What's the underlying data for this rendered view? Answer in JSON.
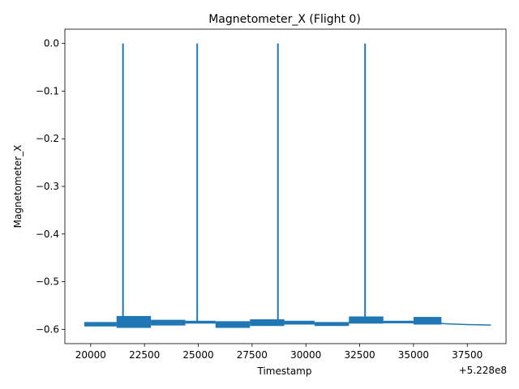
{
  "chart_data": {
    "type": "line",
    "title": "Magnetometer_X (Flight 0)",
    "xlabel": "Timestamp",
    "ylabel": "Magnetometer_X",
    "x_offset_label": "+5.228e8",
    "xlim": [
      18800,
      39300
    ],
    "ylim": [
      -0.63,
      0.03
    ],
    "x_ticks": [
      20000,
      22500,
      25000,
      27500,
      30000,
      32500,
      35000,
      37500
    ],
    "x_tick_labels": [
      "20000",
      "22500",
      "25000",
      "27500",
      "30000",
      "32500",
      "35000",
      "37500"
    ],
    "y_ticks": [
      0.0,
      -0.1,
      -0.2,
      -0.3,
      -0.4,
      -0.5,
      -0.6
    ],
    "y_tick_labels": [
      "0.0",
      "−0.1",
      "−0.2",
      "−0.3",
      "−0.4",
      "−0.5",
      "−0.6"
    ],
    "grid": false,
    "legend": "none",
    "color": "#1f77b4",
    "series": [
      {
        "bands": [
          {
            "x0": 19700,
            "x1": 21200,
            "ymin": -0.594,
            "ymax": -0.586
          },
          {
            "x0": 21200,
            "x1": 22800,
            "ymin": -0.597,
            "ymax": -0.572
          },
          {
            "x0": 22800,
            "x1": 24400,
            "ymin": -0.592,
            "ymax": -0.58
          },
          {
            "x0": 24400,
            "x1": 25800,
            "ymin": -0.588,
            "ymax": -0.582
          },
          {
            "x0": 25800,
            "x1": 27400,
            "ymin": -0.597,
            "ymax": -0.583
          },
          {
            "x0": 27400,
            "x1": 29000,
            "ymin": -0.593,
            "ymax": -0.579
          },
          {
            "x0": 29000,
            "x1": 30400,
            "ymin": -0.59,
            "ymax": -0.582
          },
          {
            "x0": 30400,
            "x1": 32000,
            "ymin": -0.593,
            "ymax": -0.585
          },
          {
            "x0": 32000,
            "x1": 33600,
            "ymin": -0.588,
            "ymax": -0.573
          },
          {
            "x0": 33600,
            "x1": 35000,
            "ymin": -0.587,
            "ymax": -0.582
          },
          {
            "x0": 35000,
            "x1": 36300,
            "ymin": -0.59,
            "ymax": -0.574
          }
        ],
        "spikes": [
          {
            "x": 21500,
            "base": -0.585,
            "peak": 0.0
          },
          {
            "x": 24950,
            "base": -0.585,
            "peak": 0.0
          },
          {
            "x": 28700,
            "base": -0.585,
            "peak": 0.0
          },
          {
            "x": 32750,
            "base": -0.585,
            "peak": 0.0
          }
        ],
        "tail": [
          {
            "x": 36300,
            "y": -0.588
          },
          {
            "x": 36800,
            "y": -0.589
          },
          {
            "x": 37500,
            "y": -0.59
          },
          {
            "x": 38600,
            "y": -0.591
          }
        ]
      }
    ]
  }
}
